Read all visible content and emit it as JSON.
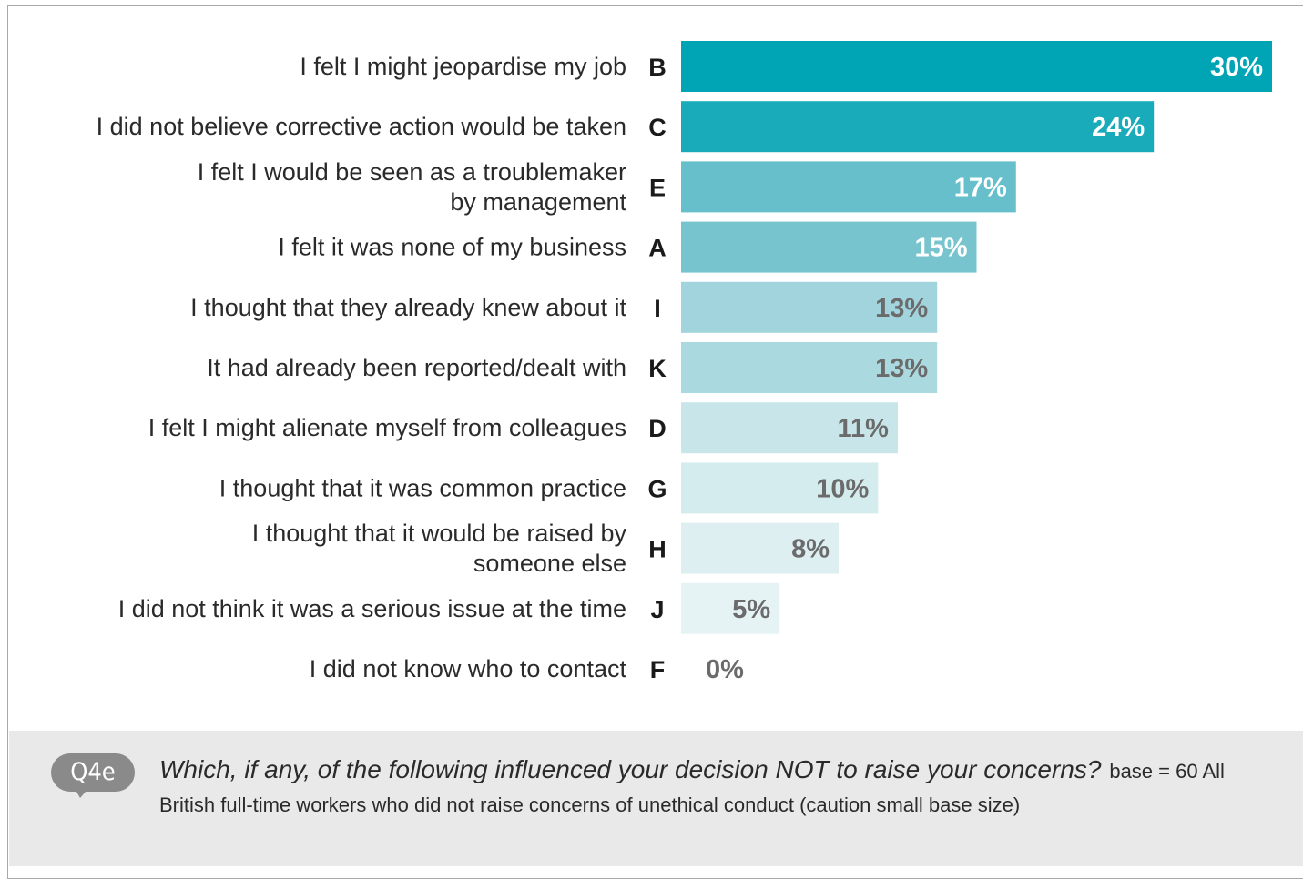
{
  "chart_data": {
    "type": "bar",
    "orientation": "horizontal",
    "categories": [
      "I felt I might jeopardise my job",
      "I did not believe corrective action would be taken",
      "I felt I would be seen as a troublemaker by management",
      "I felt it was none of my business",
      "I thought that they already knew about it",
      "It had already been reported/dealt with",
      "I felt I might alienate myself from colleagues",
      "I thought that it was common practice",
      "I thought that it would be raised by someone else",
      "I did not think it was a serious issue at the time",
      "I did not know who to contact"
    ],
    "category_lines": [
      [
        "I felt I might jeopardise my job"
      ],
      [
        "I did not believe corrective action would be taken"
      ],
      [
        "I felt I would be seen as a troublemaker",
        "by management"
      ],
      [
        "I felt it was none of my business"
      ],
      [
        "I thought that they already knew about it"
      ],
      [
        "It had already been reported/dealt with"
      ],
      [
        "I felt I might alienate myself from colleagues"
      ],
      [
        "I thought that it was common practice"
      ],
      [
        "I thought that it would be raised by",
        "someone else"
      ],
      [
        "I did not think it was a serious issue at the time"
      ],
      [
        "I did not know who to contact"
      ]
    ],
    "codes": [
      "B",
      "C",
      "E",
      "A",
      "I",
      "K",
      "D",
      "G",
      "H",
      "J",
      "F"
    ],
    "values": [
      30,
      24,
      17,
      15,
      13,
      13,
      11,
      10,
      8,
      5,
      0
    ],
    "value_labels": [
      "30%",
      "24%",
      "17%",
      "15%",
      "13%",
      "13%",
      "11%",
      "10%",
      "8%",
      "5%",
      "0%"
    ],
    "xlim": [
      0,
      30
    ],
    "grid": false,
    "legend": "none",
    "colors": [
      "#00a5b5",
      "#1aabbb",
      "#66bfcb",
      "#77c4cf",
      "#a1d4dc",
      "#abd9e0",
      "#c8e6ea",
      "#d5ecef",
      "#deeff2",
      "#e6f3f5",
      "#ffffff"
    ],
    "label_colors": [
      "#ffffff",
      "#ffffff",
      "#ffffff",
      "#ffffff",
      "#6b6b6b",
      "#6b6b6b",
      "#6b6b6b",
      "#6b6b6b",
      "#6b6b6b",
      "#6b6b6b",
      "#6b6b6b"
    ]
  },
  "question": {
    "badge": "Q4e",
    "text": "Which, if any, of the following influenced your decision NOT to raise your concerns?",
    "base": "base = 60 All British full-time workers who did not raise concerns of unethical conduct (caution small base size)"
  }
}
